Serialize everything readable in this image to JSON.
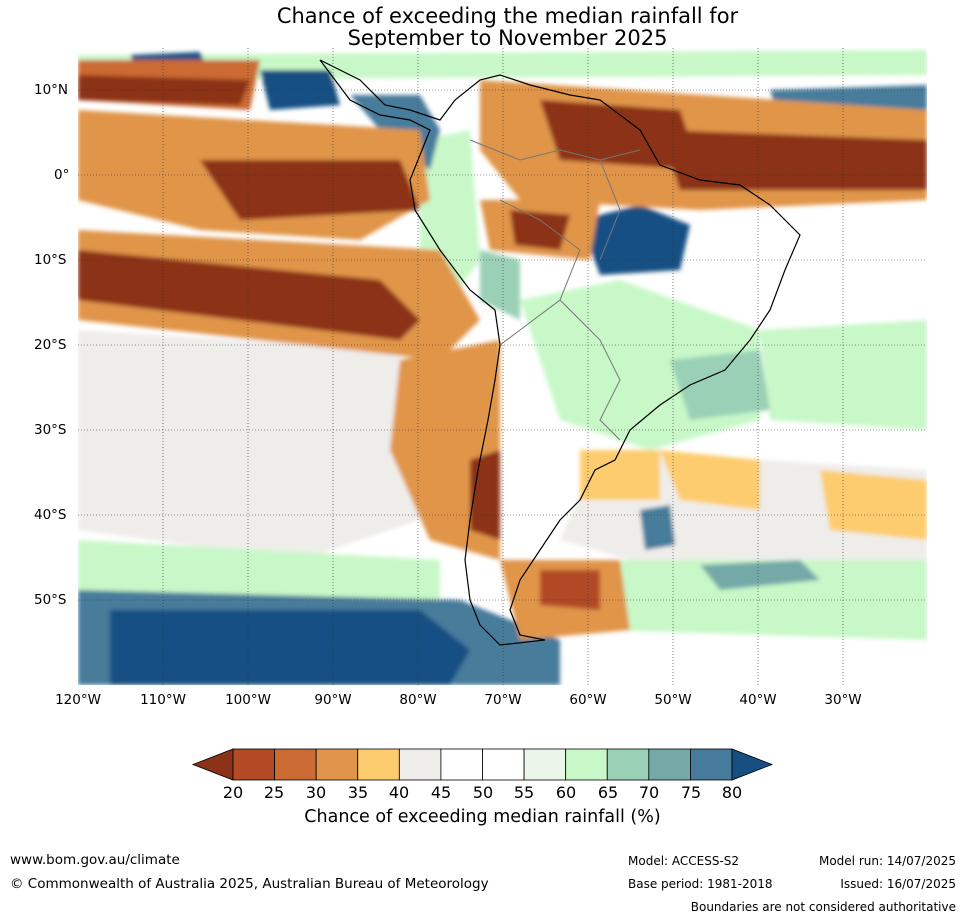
{
  "title": {
    "line1": "Chance of exceeding the median rainfall for",
    "line2": "September to November 2025"
  },
  "map": {
    "projection": "equirectangular",
    "lon_range": [
      -120,
      -20
    ],
    "lat_range": [
      -60,
      15
    ],
    "lat_labels": [
      "10°N",
      "0°",
      "10°S",
      "20°S",
      "30°S",
      "40°S",
      "50°S"
    ],
    "lon_labels": [
      "120°W",
      "110°W",
      "100°W",
      "90°W",
      "80°W",
      "70°W",
      "60°W",
      "50°W",
      "40°W",
      "30°W"
    ],
    "gridlines": true,
    "regions_shown": "South America, eastern Pacific and western Atlantic"
  },
  "legend": {
    "ticks": [
      "20",
      "25",
      "30",
      "35",
      "40",
      "45",
      "50",
      "55",
      "60",
      "65",
      "70",
      "75",
      "80"
    ],
    "colors": [
      "#8c3219",
      "#b24a26",
      "#cb6a33",
      "#e0954a",
      "#fdcc6e",
      "#efedea",
      "#ffffff",
      "#ffffff",
      "#e9f6e9",
      "#c8f8c8",
      "#9ad0b6",
      "#74a9a8",
      "#467b9b",
      "#174f83"
    ],
    "title": "Chance of exceeding median rainfall (%)"
  },
  "footer": {
    "website": "www.bom.gov.au/climate",
    "copyright": "© Commonwealth of Australia 2025, Australian Bureau of Meteorology",
    "model": "Model: ACCESS-S2",
    "base_period": "Base period: 1981-2018",
    "model_run": "Model run: 14/07/2025",
    "issued": "Issued: 16/07/2025",
    "disclaimer": "Boundaries are not considered authoritative"
  }
}
